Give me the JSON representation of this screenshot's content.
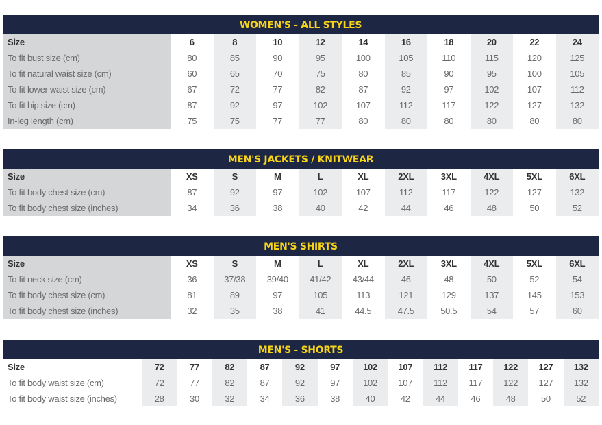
{
  "tables": [
    {
      "title": "WOMEN'S - ALL STYLES",
      "rows": [
        {
          "label": "Size",
          "values": [
            "6",
            "8",
            "10",
            "12",
            "14",
            "16",
            "18",
            "20",
            "22",
            "24"
          ]
        },
        {
          "label": "To fit bust size (cm)",
          "values": [
            "80",
            "85",
            "90",
            "95",
            "100",
            "105",
            "110",
            "115",
            "120",
            "125"
          ]
        },
        {
          "label": "To fit natural waist size (cm)",
          "values": [
            "60",
            "65",
            "70",
            "75",
            "80",
            "85",
            "90",
            "95",
            "100",
            "105"
          ]
        },
        {
          "label": "To fit lower waist size (cm)",
          "values": [
            "67",
            "72",
            "77",
            "82",
            "87",
            "92",
            "97",
            "102",
            "107",
            "112"
          ]
        },
        {
          "label": "To fit hip size (cm)",
          "values": [
            "87",
            "92",
            "97",
            "102",
            "107",
            "112",
            "117",
            "122",
            "127",
            "132"
          ]
        },
        {
          "label": "In-leg length (cm)",
          "values": [
            "75",
            "75",
            "77",
            "77",
            "80",
            "80",
            "80",
            "80",
            "80",
            "80"
          ]
        }
      ]
    },
    {
      "title": "MEN'S JACKETS / KNITWEAR",
      "rows": [
        {
          "label": "Size",
          "values": [
            "XS",
            "S",
            "M",
            "L",
            "XL",
            "2XL",
            "3XL",
            "4XL",
            "5XL",
            "6XL"
          ]
        },
        {
          "label": "To fit body chest size (cm)",
          "values": [
            "87",
            "92",
            "97",
            "102",
            "107",
            "112",
            "117",
            "122",
            "127",
            "132"
          ]
        },
        {
          "label": "To fit body chest size (inches)",
          "values": [
            "34",
            "36",
            "38",
            "40",
            "42",
            "44",
            "46",
            "48",
            "50",
            "52"
          ]
        }
      ]
    },
    {
      "title": "MEN'S SHIRTS",
      "rows": [
        {
          "label": "Size",
          "values": [
            "XS",
            "S",
            "M",
            "L",
            "XL",
            "2XL",
            "3XL",
            "4XL",
            "5XL",
            "6XL"
          ]
        },
        {
          "label": "To fit neck size (cm)",
          "values": [
            "36",
            "37/38",
            "39/40",
            "41/42",
            "43/44",
            "46",
            "48",
            "50",
            "52",
            "54"
          ]
        },
        {
          "label": "To fit body chest size (cm)",
          "values": [
            "81",
            "89",
            "97",
            "105",
            "113",
            "121",
            "129",
            "137",
            "145",
            "153"
          ]
        },
        {
          "label": "To fit body chest size (inches)",
          "values": [
            "32",
            "35",
            "38",
            "41",
            "44.5",
            "47.5",
            "50.5",
            "54",
            "57",
            "60"
          ]
        }
      ]
    },
    {
      "title": "MEN'S - SHORTS",
      "rows": [
        {
          "label": "Size",
          "values": [
            "72",
            "77",
            "82",
            "87",
            "92",
            "97",
            "102",
            "107",
            "112",
            "117",
            "122",
            "127",
            "132"
          ]
        },
        {
          "label": "To fit body waist size (cm)",
          "values": [
            "72",
            "77",
            "82",
            "87",
            "92",
            "97",
            "102",
            "107",
            "112",
            "117",
            "122",
            "127",
            "132"
          ]
        },
        {
          "label": "To fit body waist size (inches)",
          "values": [
            "28",
            "30",
            "32",
            "34",
            "36",
            "38",
            "40",
            "42",
            "44",
            "46",
            "48",
            "50",
            "52"
          ]
        }
      ]
    }
  ],
  "colors": {
    "header_bg": "#1d2744",
    "header_text": "#f7d418",
    "shade": "#ebecee",
    "label_shade": "#d5d6d8"
  }
}
